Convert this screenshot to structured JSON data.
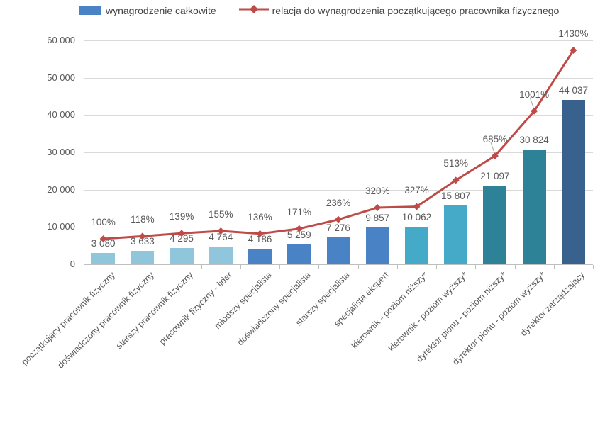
{
  "legend": {
    "bar_label": "wynagrodzenie całkowite",
    "line_label": "relacja do wynagrodzenia początkującego pracownika fizycznego"
  },
  "colors": {
    "bar_groups": [
      "#8FC6DB",
      "#4A82C6",
      "#45AAC8",
      "#2E8298",
      "#38618E"
    ],
    "line": "#BE4B48",
    "grid": "#D9D9D9",
    "axis": "#BFBFBF",
    "leader": "#A6A6A6",
    "label_text": "#595959",
    "legend_text": "#444444"
  },
  "chart_data": {
    "type": "bar",
    "subtype": "bar+line-combo",
    "categories": [
      "początkujący pracownik fizyczny",
      "doświadczony pracownik fizyczny",
      "starszy pracownik fizyczny",
      "pracownik fizyczny - lider",
      "młodszy specjalista",
      "doświadczony specjalista",
      "starszy specjalista",
      "specjalista ekspert",
      "kierownik - poziom niższy*",
      "kierownik - poziom wyższy*",
      "dyrektor pionu - poziom niższy*",
      "dyrektor pionu - poziom wyższy*",
      "dyrektor zarządzający"
    ],
    "series": [
      {
        "name": "wynagrodzenie całkowite",
        "type": "bar",
        "values": [
          3080,
          3633,
          4295,
          4764,
          4186,
          5259,
          7276,
          9857,
          10062,
          15807,
          21097,
          30824,
          44037
        ],
        "labels": [
          "3 080",
          "3 633",
          "4 295",
          "4 764",
          "4 186",
          "5 259",
          "7 276",
          "9 857",
          "10 062",
          "15 807",
          "21 097",
          "30 824",
          "44 037"
        ],
        "color_index": [
          0,
          0,
          0,
          0,
          1,
          1,
          1,
          1,
          2,
          2,
          3,
          3,
          4
        ]
      },
      {
        "name": "relacja do wynagrodzenia początkującego pracownika fizycznego",
        "type": "line",
        "values": [
          100,
          118,
          139,
          155,
          136,
          171,
          236,
          320,
          327,
          513,
          685,
          1001,
          1430
        ],
        "labels": [
          "100%",
          "118%",
          "139%",
          "155%",
          "136%",
          "171%",
          "236%",
          "320%",
          "327%",
          "513%",
          "685%",
          "1001%",
          "1430%"
        ],
        "callout_indices": [
          10,
          11
        ]
      }
    ],
    "y_axis": {
      "tick_labels": [
        "0",
        "10 000",
        "20 000",
        "30 000",
        "40 000",
        "50 000",
        "60 000"
      ],
      "min": 0,
      "max": 60000,
      "grid": true
    },
    "legend_position": "top"
  }
}
